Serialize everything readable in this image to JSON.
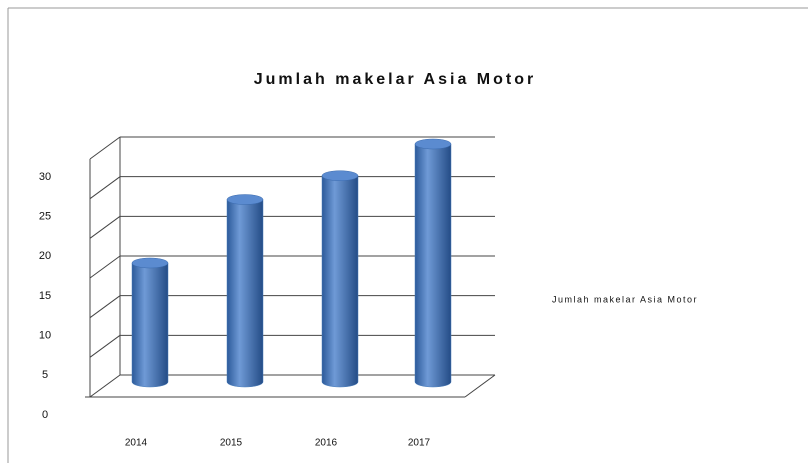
{
  "chart_data": {
    "type": "bar3d",
    "title": "Jumlah makelar Asia Motor",
    "categories": [
      "2014",
      "2015",
      "2016",
      "2017"
    ],
    "series": [
      {
        "name": "Jumlah makelar Asia Motor",
        "color": "#4a7ebb",
        "values": [
          15,
          23,
          26,
          30
        ]
      }
    ],
    "ylim": [
      0,
      30
    ],
    "yticks": [
      0,
      5,
      10,
      15,
      20,
      25,
      30
    ],
    "grid": true
  }
}
